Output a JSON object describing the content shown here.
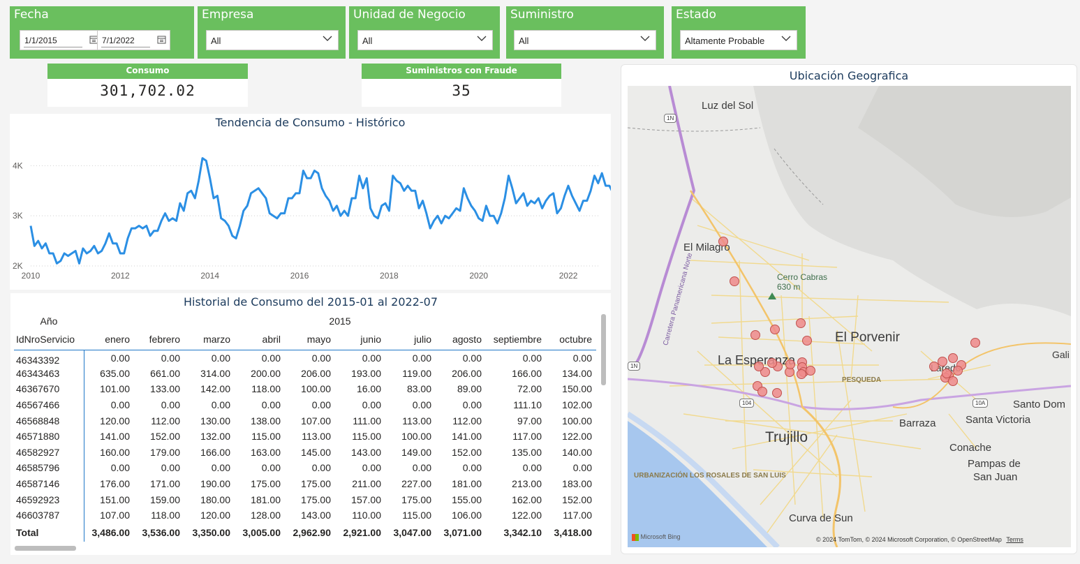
{
  "slicers": {
    "fecha": {
      "title": "Fecha",
      "start": "1/1/2015",
      "end": "7/1/2022"
    },
    "empresa": {
      "title": "Empresa",
      "value": "All"
    },
    "unidad": {
      "title": "Unidad de Negocio",
      "value": "All"
    },
    "suministro": {
      "title": "Suministro",
      "value": "All"
    },
    "estado": {
      "title": "Estado",
      "value": "Altamente Probable"
    }
  },
  "cards": {
    "consumo": {
      "label": "Consumo",
      "value": "301,702.02"
    },
    "fraude": {
      "label": "Suministros con Fraude",
      "value": "35"
    }
  },
  "trend": {
    "title": "Tendencia de Consumo - Histórico"
  },
  "chart_data": {
    "type": "line",
    "title": "Tendencia de Consumo - Histórico",
    "ylim": [
      2000,
      4200
    ],
    "yticks": [
      {
        "v": 2000,
        "label": "2K"
      },
      {
        "v": 3000,
        "label": "3K"
      },
      {
        "v": 4000,
        "label": "4K"
      }
    ],
    "xlim": [
      2010.0,
      2022.7
    ],
    "xticks": [
      "2010",
      "2012",
      "2014",
      "2016",
      "2018",
      "2020",
      "2022"
    ],
    "grid": true,
    "color": "#2b8fe4",
    "series": [
      {
        "x_start": 2010.0,
        "x_step": 0.08333,
        "values": [
          2800,
          2400,
          2500,
          2350,
          2450,
          2250,
          2250,
          2050,
          2100,
          2250,
          2200,
          2250,
          2300,
          2050,
          2350,
          2250,
          2300,
          2400,
          2250,
          2300,
          2450,
          2650,
          2450,
          2450,
          2250,
          2250,
          2550,
          2750,
          2750,
          2800,
          2750,
          2800,
          2600,
          2700,
          2700,
          2900,
          3050,
          2900,
          2950,
          2900,
          3250,
          3100,
          3450,
          3500,
          3350,
          3700,
          4150,
          4100,
          3750,
          3350,
          3400,
          2950,
          2900,
          2800,
          2600,
          2550,
          2800,
          3100,
          3200,
          3450,
          3500,
          3550,
          3450,
          3350,
          3050,
          3000,
          2950,
          3050,
          3050,
          3350,
          3350,
          3450,
          3450,
          3900,
          3750,
          3750,
          3900,
          3850,
          3550,
          3400,
          3300,
          3100,
          3200,
          3000,
          3100,
          3000,
          3350,
          3350,
          3800,
          3550,
          3750,
          3150,
          3000,
          2950,
          3200,
          3250,
          3100,
          3800,
          3700,
          3650,
          3500,
          3600,
          3500,
          3500,
          3150,
          3300,
          3050,
          2750,
          2900,
          3000,
          2850,
          3000,
          2950,
          3050,
          3150,
          3100,
          3550,
          3350,
          3200,
          3100,
          2950,
          2900,
          3200,
          3000,
          3000,
          2850,
          3050,
          3350,
          3800,
          3550,
          3250,
          3350,
          3450,
          3200,
          3300,
          3250,
          3350,
          3150,
          3300,
          3400,
          3450,
          3050,
          3150,
          3400,
          3600,
          3400,
          3250,
          3100,
          3300,
          3300,
          3500,
          3800,
          3650,
          3850,
          3600,
          3600,
          3450,
          3750
        ]
      }
    ]
  },
  "table": {
    "title": "Historial de Consumo del 2015-01 al 2022-07",
    "year_header": "Año",
    "year_value": "2015",
    "id_header": "IdNroServicio",
    "months": [
      "enero",
      "febrero",
      "marzo",
      "abril",
      "mayo",
      "junio",
      "julio",
      "agosto",
      "septiembre",
      "octubre"
    ],
    "rows": [
      {
        "id": "46343392",
        "vals": [
          "0.00",
          "0.00",
          "0.00",
          "0.00",
          "0.00",
          "0.00",
          "0.00",
          "0.00",
          "0.00",
          "0.00"
        ]
      },
      {
        "id": "46343463",
        "vals": [
          "635.00",
          "661.00",
          "314.00",
          "200.00",
          "206.00",
          "193.00",
          "119.00",
          "206.00",
          "166.00",
          "134.00"
        ]
      },
      {
        "id": "46367670",
        "vals": [
          "101.00",
          "133.00",
          "142.00",
          "118.00",
          "100.00",
          "16.00",
          "83.00",
          "89.00",
          "72.00",
          "150.00"
        ]
      },
      {
        "id": "46567466",
        "vals": [
          "0.00",
          "0.00",
          "0.00",
          "0.00",
          "0.00",
          "0.00",
          "0.00",
          "0.00",
          "111.10",
          "102.00"
        ]
      },
      {
        "id": "46568848",
        "vals": [
          "120.00",
          "112.00",
          "130.00",
          "138.00",
          "107.00",
          "111.00",
          "113.00",
          "112.00",
          "97.00",
          "100.00"
        ]
      },
      {
        "id": "46571880",
        "vals": [
          "141.00",
          "152.00",
          "132.00",
          "115.00",
          "113.00",
          "115.00",
          "100.00",
          "141.00",
          "117.00",
          "122.00"
        ]
      },
      {
        "id": "46582927",
        "vals": [
          "160.00",
          "179.00",
          "166.00",
          "163.00",
          "145.00",
          "143.00",
          "149.00",
          "152.00",
          "135.00",
          "140.00"
        ]
      },
      {
        "id": "46585796",
        "vals": [
          "0.00",
          "0.00",
          "0.00",
          "0.00",
          "0.00",
          "0.00",
          "0.00",
          "0.00",
          "0.00",
          "0.00"
        ]
      },
      {
        "id": "46587146",
        "vals": [
          "176.00",
          "171.00",
          "190.00",
          "175.00",
          "175.00",
          "211.00",
          "227.00",
          "181.00",
          "213.00",
          "183.00"
        ]
      },
      {
        "id": "46592923",
        "vals": [
          "151.00",
          "159.00",
          "180.00",
          "181.00",
          "175.00",
          "157.00",
          "175.00",
          "155.00",
          "162.00",
          "152.00"
        ]
      },
      {
        "id": "46603787",
        "vals": [
          "107.00",
          "118.00",
          "120.00",
          "128.00",
          "143.00",
          "110.00",
          "115.00",
          "106.00",
          "122.00",
          "117.00"
        ]
      }
    ],
    "total_label": "Total",
    "totals": [
      "3,486.00",
      "3,536.00",
      "3,350.00",
      "3,005.00",
      "2,962.90",
      "2,921.00",
      "3,047.00",
      "3,071.00",
      "3,342.10",
      "3,418.00"
    ]
  },
  "map": {
    "title": "Ubicación Geografica",
    "labels": {
      "luz_del_sol": "Luz del Sol",
      "el_milagro": "El Milagro",
      "cerro_cabras": "Cerro Cabras",
      "cerro_alt": "630 m",
      "el_porvenir": "El Porvenir",
      "la_esperanza": "La Esperanza",
      "pesqueda": "PESQUEDA",
      "trujillo": "Trujillo",
      "barraza": "Barraza",
      "santa_victoria": "Santa Victoria",
      "santo_dom": "Santo Dom",
      "conache": "Conache",
      "pampas": "Pampas de",
      "san_juan": "San Juan",
      "urbanizacion": "URBANIZACIÓN LOS ROSALES DE SAN LUIS",
      "curva_de_sun": "Curva de Sun",
      "gali": "Gali",
      "laredo": "Laredo",
      "panamericana": "Carretera Panamericana Norte",
      "shield_1n": "1N",
      "shield_104": "104",
      "shield_10a": "10A"
    },
    "bing": "Microsoft Bing",
    "attribution": "© 2024 TomTom, © 2024 Microsoft Corporation, © OpenStreetMap",
    "terms": "Terms"
  }
}
